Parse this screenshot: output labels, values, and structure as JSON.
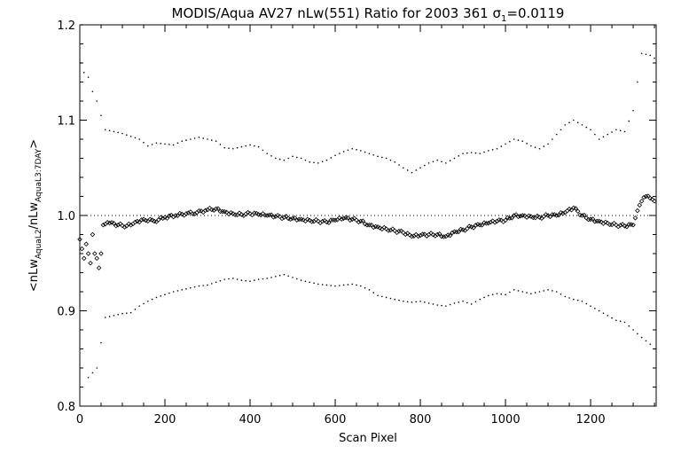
{
  "chart_data": {
    "type": "scatter",
    "title": {
      "prefix": "MODIS/Aqua AV27 nLw(551) Ratio for 2003 361 ",
      "sigma_symbol": "σ",
      "sigma_subscript": "1",
      "sigma_value": "=0.0119"
    },
    "xlabel": "Scan Pixel",
    "ylabel": {
      "open": "<nLw",
      "num_sub": "AquaL2",
      "mid": "/nLw",
      "den_sub": "AquaL3:7DAY",
      "close": ">"
    },
    "xlim": [
      0,
      1354
    ],
    "ylim": [
      0.8,
      1.2
    ],
    "x_ticks": [
      0,
      200,
      400,
      600,
      800,
      1000,
      1200
    ],
    "x_tick_labels": [
      "0",
      "200",
      "400",
      "600",
      "800",
      "1000",
      "1200"
    ],
    "y_ticks": [
      0.8,
      0.9,
      1.0,
      1.1,
      1.2
    ],
    "y_tick_labels": [
      "0.8",
      "0.9",
      "1.0",
      "1.1",
      "1.2"
    ],
    "reference_line": {
      "y": 1.0,
      "style": "dotted"
    },
    "series": [
      {
        "role": "mean",
        "marker": "diamond",
        "points": [
          [
            0,
            0.975
          ],
          [
            5,
            0.965
          ],
          [
            10,
            0.955
          ],
          [
            15,
            0.97
          ],
          [
            20,
            0.96
          ],
          [
            25,
            0.95
          ],
          [
            30,
            0.98
          ],
          [
            35,
            0.96
          ],
          [
            40,
            0.955
          ],
          [
            45,
            0.945
          ],
          [
            50,
            0.96
          ],
          [
            55,
            0.99
          ],
          [
            70,
            0.992
          ],
          [
            90,
            0.99
          ],
          [
            110,
            0.989
          ],
          [
            130,
            0.993
          ],
          [
            150,
            0.996
          ],
          [
            175,
            0.994
          ],
          [
            200,
            0.998
          ],
          [
            225,
            1.0
          ],
          [
            250,
            1.002
          ],
          [
            275,
            1.003
          ],
          [
            300,
            1.006
          ],
          [
            320,
            1.007
          ],
          [
            340,
            1.004
          ],
          [
            360,
            1.002
          ],
          [
            380,
            1.001
          ],
          [
            400,
            1.002
          ],
          [
            420,
            1.001
          ],
          [
            440,
            1.0
          ],
          [
            460,
            0.999
          ],
          [
            480,
            0.998
          ],
          [
            500,
            0.997
          ],
          [
            520,
            0.996
          ],
          [
            540,
            0.995
          ],
          [
            560,
            0.994
          ],
          [
            580,
            0.993
          ],
          [
            600,
            0.995
          ],
          [
            620,
            0.997
          ],
          [
            640,
            0.996
          ],
          [
            660,
            0.994
          ],
          [
            680,
            0.99
          ],
          [
            700,
            0.988
          ],
          [
            720,
            0.986
          ],
          [
            740,
            0.984
          ],
          [
            760,
            0.982
          ],
          [
            780,
            0.978
          ],
          [
            800,
            0.979
          ],
          [
            820,
            0.98
          ],
          [
            840,
            0.98
          ],
          [
            860,
            0.978
          ],
          [
            880,
            0.983
          ],
          [
            900,
            0.985
          ],
          [
            920,
            0.988
          ],
          [
            940,
            0.99
          ],
          [
            960,
            0.992
          ],
          [
            980,
            0.994
          ],
          [
            1000,
            0.995
          ],
          [
            1020,
            1.0
          ],
          [
            1040,
            1.0
          ],
          [
            1060,
            0.999
          ],
          [
            1080,
            0.998
          ],
          [
            1100,
            1.0
          ],
          [
            1120,
            1.0
          ],
          [
            1140,
            1.003
          ],
          [
            1160,
            1.008
          ],
          [
            1180,
            1.0
          ],
          [
            1200,
            0.996
          ],
          [
            1220,
            0.994
          ],
          [
            1240,
            0.992
          ],
          [
            1260,
            0.99
          ],
          [
            1280,
            0.989
          ],
          [
            1300,
            0.99
          ],
          [
            1310,
            1.005
          ],
          [
            1320,
            1.015
          ],
          [
            1330,
            1.02
          ],
          [
            1340,
            1.018
          ],
          [
            1350,
            1.015
          ]
        ]
      },
      {
        "role": "upper-bound",
        "marker": "dot",
        "points": [
          [
            2,
            1.16
          ],
          [
            5,
            1.2
          ],
          [
            10,
            1.15
          ],
          [
            20,
            1.145
          ],
          [
            30,
            1.13
          ],
          [
            40,
            1.12
          ],
          [
            60,
            1.09
          ],
          [
            80,
            1.088
          ],
          [
            100,
            1.086
          ],
          [
            120,
            1.083
          ],
          [
            140,
            1.08
          ],
          [
            160,
            1.073
          ],
          [
            180,
            1.076
          ],
          [
            200,
            1.075
          ],
          [
            220,
            1.074
          ],
          [
            240,
            1.078
          ],
          [
            260,
            1.08
          ],
          [
            280,
            1.082
          ],
          [
            300,
            1.08
          ],
          [
            320,
            1.078
          ],
          [
            340,
            1.071
          ],
          [
            360,
            1.07
          ],
          [
            380,
            1.072
          ],
          [
            400,
            1.074
          ],
          [
            420,
            1.072
          ],
          [
            440,
            1.065
          ],
          [
            460,
            1.06
          ],
          [
            480,
            1.058
          ],
          [
            500,
            1.062
          ],
          [
            520,
            1.06
          ],
          [
            540,
            1.056
          ],
          [
            560,
            1.055
          ],
          [
            580,
            1.058
          ],
          [
            600,
            1.063
          ],
          [
            620,
            1.067
          ],
          [
            640,
            1.07
          ],
          [
            660,
            1.068
          ],
          [
            680,
            1.065
          ],
          [
            700,
            1.062
          ],
          [
            720,
            1.06
          ],
          [
            740,
            1.056
          ],
          [
            760,
            1.05
          ],
          [
            780,
            1.045
          ],
          [
            800,
            1.05
          ],
          [
            820,
            1.055
          ],
          [
            840,
            1.058
          ],
          [
            860,
            1.055
          ],
          [
            880,
            1.06
          ],
          [
            900,
            1.065
          ],
          [
            920,
            1.066
          ],
          [
            940,
            1.065
          ],
          [
            960,
            1.068
          ],
          [
            980,
            1.07
          ],
          [
            1000,
            1.075
          ],
          [
            1020,
            1.08
          ],
          [
            1040,
            1.078
          ],
          [
            1060,
            1.073
          ],
          [
            1080,
            1.07
          ],
          [
            1100,
            1.075
          ],
          [
            1120,
            1.085
          ],
          [
            1140,
            1.095
          ],
          [
            1160,
            1.1
          ],
          [
            1180,
            1.095
          ],
          [
            1200,
            1.09
          ],
          [
            1220,
            1.08
          ],
          [
            1240,
            1.085
          ],
          [
            1260,
            1.09
          ],
          [
            1280,
            1.088
          ],
          [
            1300,
            1.11
          ],
          [
            1320,
            1.17
          ],
          [
            1340,
            1.168
          ],
          [
            1350,
            1.165
          ]
        ]
      },
      {
        "role": "lower-bound",
        "marker": "dot",
        "points": [
          [
            20,
            0.83
          ],
          [
            40,
            0.84
          ],
          [
            60,
            0.893
          ],
          [
            80,
            0.895
          ],
          [
            100,
            0.897
          ],
          [
            120,
            0.898
          ],
          [
            140,
            0.905
          ],
          [
            160,
            0.91
          ],
          [
            180,
            0.914
          ],
          [
            200,
            0.917
          ],
          [
            220,
            0.92
          ],
          [
            240,
            0.922
          ],
          [
            260,
            0.924
          ],
          [
            280,
            0.926
          ],
          [
            300,
            0.927
          ],
          [
            320,
            0.93
          ],
          [
            340,
            0.933
          ],
          [
            360,
            0.934
          ],
          [
            380,
            0.932
          ],
          [
            400,
            0.931
          ],
          [
            420,
            0.933
          ],
          [
            440,
            0.934
          ],
          [
            460,
            0.936
          ],
          [
            480,
            0.938
          ],
          [
            500,
            0.935
          ],
          [
            520,
            0.932
          ],
          [
            540,
            0.93
          ],
          [
            560,
            0.928
          ],
          [
            580,
            0.927
          ],
          [
            600,
            0.926
          ],
          [
            620,
            0.927
          ],
          [
            640,
            0.928
          ],
          [
            660,
            0.926
          ],
          [
            680,
            0.922
          ],
          [
            700,
            0.916
          ],
          [
            720,
            0.914
          ],
          [
            740,
            0.912
          ],
          [
            760,
            0.91
          ],
          [
            780,
            0.909
          ],
          [
            800,
            0.91
          ],
          [
            820,
            0.908
          ],
          [
            840,
            0.906
          ],
          [
            860,
            0.905
          ],
          [
            880,
            0.908
          ],
          [
            900,
            0.91
          ],
          [
            920,
            0.907
          ],
          [
            940,
            0.912
          ],
          [
            960,
            0.916
          ],
          [
            980,
            0.918
          ],
          [
            1000,
            0.917
          ],
          [
            1020,
            0.922
          ],
          [
            1040,
            0.92
          ],
          [
            1060,
            0.918
          ],
          [
            1080,
            0.92
          ],
          [
            1100,
            0.922
          ],
          [
            1120,
            0.92
          ],
          [
            1140,
            0.915
          ],
          [
            1160,
            0.912
          ],
          [
            1180,
            0.91
          ],
          [
            1200,
            0.905
          ],
          [
            1220,
            0.9
          ],
          [
            1240,
            0.895
          ],
          [
            1260,
            0.89
          ],
          [
            1280,
            0.888
          ],
          [
            1300,
            0.88
          ],
          [
            1320,
            0.872
          ],
          [
            1340,
            0.865
          ],
          [
            1350,
            0.86
          ]
        ]
      }
    ]
  }
}
